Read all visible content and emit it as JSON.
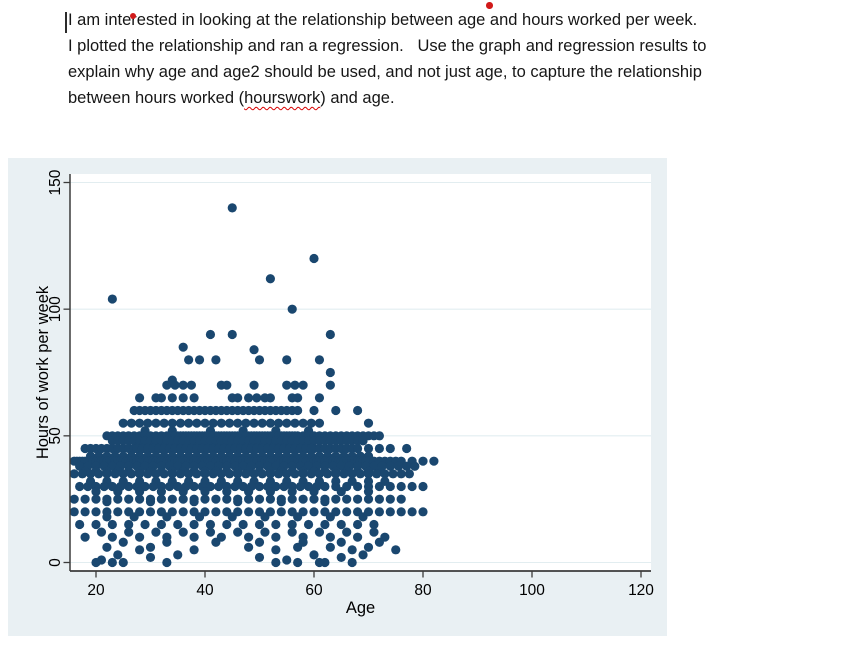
{
  "document": {
    "lines": [
      "I am interested in looking at the relationship between age and hours worked per week.",
      "I plotted the relationship and ran a regression.   Use the graph and regression results to",
      "explain why age and age2 should be used, and not just age, to capture the relationship"
    ],
    "line4_before": "between hours worked (",
    "misspelled_word": "hourswork",
    "line4_after": ") and age.",
    "proofing_color": "#d80000",
    "mark_color": "#d11a1a"
  },
  "chart_data": {
    "type": "scatter",
    "title": "",
    "xlabel": "Age",
    "ylabel": "Hours of work per week",
    "xticks": [
      20,
      40,
      60,
      80,
      100,
      120
    ],
    "yticks": [
      0,
      50,
      100,
      150
    ],
    "xlim": [
      15.2,
      121.8
    ],
    "ylim": [
      -3.4,
      153.4
    ],
    "grid": true,
    "legend": "none",
    "marker_color": "#1a476f",
    "plot_bg": "#ffffff",
    "outer_bg": "#e9f0f3",
    "grid_color": "#e2edf0",
    "axis_color": "#3b3b3b",
    "series": [
      {
        "hours": 140,
        "ages": [
          45
        ]
      },
      {
        "hours": 120,
        "ages": [
          60
        ]
      },
      {
        "hours": 112,
        "ages": [
          52
        ]
      },
      {
        "hours": 104,
        "ages": [
          23
        ]
      },
      {
        "hours": 100,
        "ages": [
          56
        ]
      },
      {
        "hours": 90,
        "ages": [
          41,
          45,
          63
        ]
      },
      {
        "hours": 85,
        "ages": [
          36
        ]
      },
      {
        "hours": 84,
        "ages": [
          49
        ]
      },
      {
        "hours": 80,
        "ages": [
          37,
          39,
          42,
          50,
          55,
          61
        ]
      },
      {
        "hours": 75,
        "ages": [
          63
        ]
      },
      {
        "hours": 72,
        "ages": [
          34
        ]
      },
      {
        "hours": 70,
        "ages": [
          33,
          34.5,
          36,
          37.5,
          43,
          44,
          49,
          55,
          56.5,
          58,
          63
        ]
      },
      {
        "hours": 65,
        "ages": [
          28,
          31,
          32,
          34,
          36,
          38,
          45,
          46,
          48,
          49.5,
          51,
          52,
          56,
          57,
          61
        ]
      },
      {
        "hours": 60,
        "age_runs": [
          [
            27,
            57,
            1
          ]
        ],
        "ages": [
          60,
          64,
          68
        ]
      },
      {
        "hours": 55,
        "age_runs": [
          [
            25,
            62,
            1.5
          ]
        ],
        "ages": [
          70
        ]
      },
      {
        "hours": 52,
        "ages": [
          29,
          34,
          41,
          47,
          53,
          59
        ]
      },
      {
        "hours": 50,
        "age_runs": [
          [
            22,
            72,
            1
          ],
          [
            33.5,
            56.5,
            1
          ]
        ]
      },
      {
        "hours": 48,
        "age_runs": [
          [
            23,
            69,
            1
          ]
        ]
      },
      {
        "hours": 45,
        "age_runs": [
          [
            18,
            68,
            1
          ],
          [
            27.5,
            59.5,
            1
          ]
        ],
        "ages": [
          70,
          72,
          74,
          77
        ]
      },
      {
        "hours": 42,
        "age_runs": [
          [
            19,
            70,
            1.5
          ]
        ]
      },
      {
        "hours": 40,
        "age_runs": [
          [
            16,
            70,
            0.5
          ]
        ],
        "ages": [
          71,
          72,
          73,
          74,
          75,
          76,
          78,
          80,
          82
        ]
      },
      {
        "hours": 38,
        "age_runs": [
          [
            17,
            79,
            1.5
          ]
        ]
      },
      {
        "hours": 36,
        "age_runs": [
          [
            18,
            72,
            2
          ]
        ]
      },
      {
        "hours": 35,
        "age_runs": [
          [
            16,
            78,
            1.5
          ]
        ]
      },
      {
        "hours": 32,
        "age_runs": [
          [
            19,
            74,
            3
          ]
        ]
      },
      {
        "hours": 30,
        "age_runs": [
          [
            17,
            62,
            1.5
          ],
          [
            64,
            80,
            2
          ]
        ]
      },
      {
        "hours": 28,
        "ages": [
          20,
          24,
          28,
          32,
          36,
          40,
          44,
          48,
          52,
          56,
          60,
          65,
          70
        ]
      },
      {
        "hours": 25,
        "age_runs": [
          [
            16,
            76,
            2
          ]
        ]
      },
      {
        "hours": 24,
        "ages": [
          22,
          30,
          38,
          46,
          54,
          62
        ]
      },
      {
        "hours": 20,
        "age_runs": [
          [
            16,
            80,
            2
          ]
        ]
      },
      {
        "hours": 18,
        "ages": [
          22,
          27,
          33,
          39,
          45,
          51,
          57,
          63,
          69
        ]
      },
      {
        "hours": 15,
        "age_runs": [
          [
            17,
            71,
            3
          ]
        ]
      },
      {
        "hours": 12,
        "age_runs": [
          [
            21,
            71,
            5
          ]
        ]
      },
      {
        "hours": 10,
        "age_runs": [
          [
            18,
            73,
            5
          ]
        ]
      },
      {
        "hours": 8,
        "ages": [
          25,
          33,
          42,
          50,
          58,
          65,
          72
        ]
      },
      {
        "hours": 6,
        "ages": [
          22,
          30,
          48,
          57,
          63,
          70
        ]
      },
      {
        "hours": 5,
        "ages": [
          28,
          38,
          53,
          67,
          75
        ]
      },
      {
        "hours": 3,
        "ages": [
          24,
          35,
          60,
          69
        ]
      },
      {
        "hours": 2,
        "ages": [
          30,
          50,
          65
        ]
      },
      {
        "hours": 1,
        "ages": [
          21,
          55
        ]
      },
      {
        "hours": 0,
        "ages": [
          20,
          23,
          25,
          33,
          53,
          57,
          61,
          62,
          67
        ]
      }
    ]
  }
}
